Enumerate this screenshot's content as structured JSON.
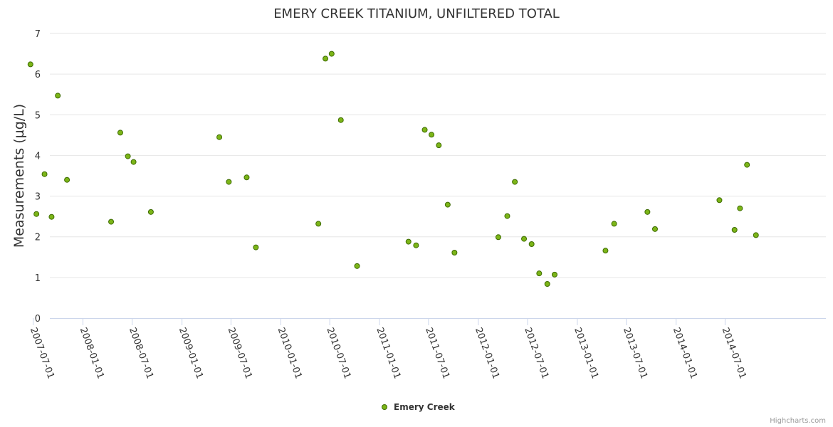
{
  "chart_data": {
    "type": "scatter",
    "title": "EMERY CREEK TITANIUM, UNFILTERED TOTAL",
    "xlabel": "",
    "ylabel": "Measurements (µg/L)",
    "ylim": [
      0,
      7
    ],
    "y_ticks": [
      "0",
      "1",
      "2",
      "3",
      "4",
      "5",
      "6",
      "7"
    ],
    "x_ticks": [
      "2007-07-01",
      "2008-01-01",
      "2008-07-01",
      "2009-01-01",
      "2009-07-01",
      "2010-01-01",
      "2010-07-01",
      "2011-01-01",
      "2011-07-01",
      "2012-01-01",
      "2012-07-01",
      "2013-01-01",
      "2013-07-01",
      "2014-01-01",
      "2014-07-01"
    ],
    "grid": true,
    "legend_position": "bottom-center",
    "series": [
      {
        "name": "Emery Creek",
        "color": "#7cb518",
        "stroke": "#3d6b00",
        "points": [
          [
            "2007-06-21",
            6.24
          ],
          [
            "2007-07-13",
            2.56
          ],
          [
            "2007-08-12",
            3.54
          ],
          [
            "2007-09-07",
            2.49
          ],
          [
            "2007-09-30",
            5.47
          ],
          [
            "2007-11-03",
            3.4
          ],
          [
            "2008-04-14",
            2.37
          ],
          [
            "2008-05-18",
            4.56
          ],
          [
            "2008-06-15",
            3.98
          ],
          [
            "2008-07-06",
            3.84
          ],
          [
            "2008-09-08",
            2.61
          ],
          [
            "2009-05-19",
            4.45
          ],
          [
            "2009-06-23",
            3.35
          ],
          [
            "2009-08-28",
            3.46
          ],
          [
            "2009-10-01",
            1.74
          ],
          [
            "2010-05-20",
            2.32
          ],
          [
            "2010-06-15",
            6.38
          ],
          [
            "2010-07-08",
            6.5
          ],
          [
            "2010-08-11",
            4.87
          ],
          [
            "2010-10-10",
            1.28
          ],
          [
            "2011-04-18",
            1.88
          ],
          [
            "2011-05-16",
            1.79
          ],
          [
            "2011-06-17",
            4.63
          ],
          [
            "2011-07-12",
            4.51
          ],
          [
            "2011-08-08",
            4.25
          ],
          [
            "2011-09-10",
            2.79
          ],
          [
            "2011-10-05",
            1.61
          ],
          [
            "2012-03-15",
            1.99
          ],
          [
            "2012-04-17",
            2.51
          ],
          [
            "2012-05-15",
            3.35
          ],
          [
            "2012-06-18",
            1.95
          ],
          [
            "2012-07-16",
            1.82
          ],
          [
            "2012-08-13",
            1.1
          ],
          [
            "2012-09-12",
            0.84
          ],
          [
            "2012-10-09",
            1.07
          ],
          [
            "2013-04-15",
            1.66
          ],
          [
            "2013-05-17",
            2.32
          ],
          [
            "2013-09-17",
            2.61
          ],
          [
            "2013-10-15",
            2.19
          ],
          [
            "2014-06-10",
            2.9
          ],
          [
            "2014-08-05",
            2.17
          ],
          [
            "2014-08-25",
            2.7
          ],
          [
            "2014-09-20",
            3.77
          ],
          [
            "2014-10-23",
            2.04
          ]
        ]
      }
    ]
  },
  "credits": "Highcharts.com"
}
